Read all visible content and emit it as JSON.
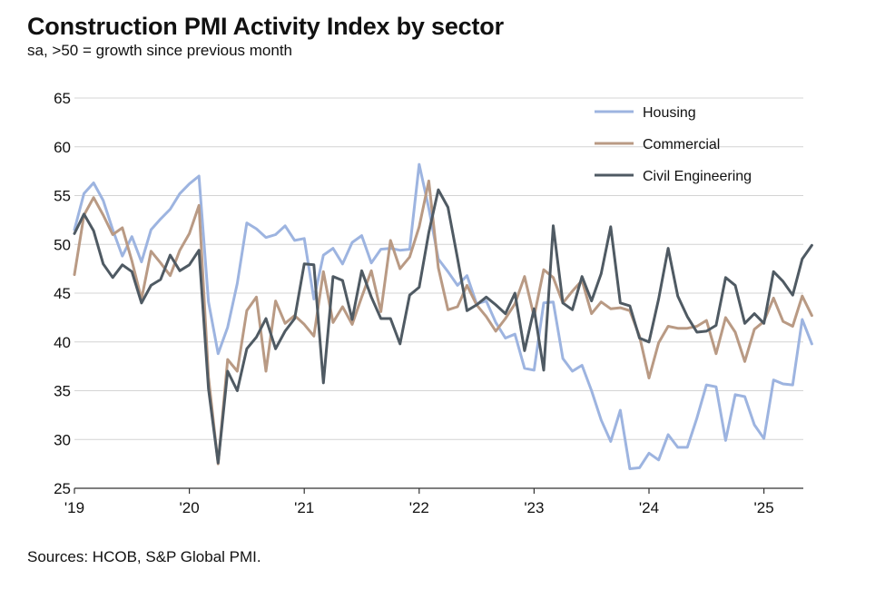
{
  "header": {
    "title": "Construction PMI Activity Index by sector",
    "subtitle": "sa, >50 = growth since previous month"
  },
  "footer": {
    "source": "Sources: HCOB, S&P Global PMI."
  },
  "chart_data": {
    "type": "line",
    "title": "Construction PMI Activity Index by sector",
    "subtitle": "sa, >50 = growth since previous month",
    "xlabel": "",
    "ylabel": "",
    "ylim": [
      25,
      65
    ],
    "yticks": [
      25,
      30,
      35,
      40,
      45,
      50,
      55,
      60,
      65
    ],
    "xticks": [
      {
        "label": "'19",
        "month_index": 0
      },
      {
        "label": "'20",
        "month_index": 12
      },
      {
        "label": "'21",
        "month_index": 24
      },
      {
        "label": "'22",
        "month_index": 36
      },
      {
        "label": "'23",
        "month_index": 48
      },
      {
        "label": "'24",
        "month_index": 60
      },
      {
        "label": "'25",
        "month_index": 72
      }
    ],
    "x_start": "2019-01",
    "x_frequency": "monthly",
    "grid": "horizontal",
    "legend_position": "top-right",
    "series": [
      {
        "name": "Housing",
        "color": "#9db4e0",
        "values": [
          51.5,
          55.2,
          56.3,
          54.5,
          51.5,
          48.8,
          50.8,
          48.2,
          51.5,
          52.6,
          53.6,
          55.2,
          56.2,
          57.0,
          44.1,
          38.8,
          41.5,
          46.0,
          52.2,
          51.6,
          50.7,
          51.0,
          51.9,
          50.4,
          50.6,
          44.4,
          48.9,
          49.6,
          48.0,
          50.2,
          50.9,
          48.1,
          49.5,
          49.6,
          49.4,
          49.5,
          58.2,
          53.7,
          48.5,
          47.2,
          45.8,
          46.8,
          43.9,
          44.2,
          42.0,
          40.4,
          40.8,
          37.3,
          37.1,
          44.0,
          44.1,
          38.3,
          37.0,
          37.6,
          35.0,
          32.0,
          29.8,
          33.0,
          27.0,
          27.1,
          28.6,
          27.9,
          30.5,
          29.2,
          29.2,
          32.2,
          35.6,
          35.4,
          29.9,
          34.6,
          34.4,
          31.5,
          30.1,
          36.1,
          35.7,
          35.6,
          42.3,
          39.8
        ]
      },
      {
        "name": "Commercial",
        "color": "#b99a84",
        "values": [
          46.9,
          53.0,
          54.8,
          53.0,
          51.0,
          51.7,
          48.3,
          44.4,
          49.3,
          48.1,
          46.8,
          49.4,
          51.1,
          54.0,
          36.4,
          27.5,
          38.2,
          37.0,
          43.2,
          44.6,
          37.0,
          44.2,
          41.9,
          42.7,
          41.8,
          40.6,
          47.2,
          42.0,
          43.6,
          41.8,
          44.6,
          47.3,
          43.1,
          50.4,
          47.5,
          48.7,
          51.8,
          56.5,
          47.6,
          43.3,
          43.6,
          45.8,
          43.8,
          42.6,
          41.1,
          42.4,
          43.9,
          46.7,
          42.6,
          47.4,
          46.6,
          44.0,
          45.2,
          46.3,
          42.9,
          44.1,
          43.4,
          43.5,
          43.2,
          40.6,
          36.3,
          39.9,
          41.6,
          41.4,
          41.4,
          41.6,
          42.2,
          38.8,
          42.5,
          41.0,
          38.0,
          41.3,
          42.1,
          44.5,
          42.1,
          41.6,
          44.7,
          42.7
        ]
      },
      {
        "name": "Civil Engineering",
        "color": "#4f5a63",
        "values": [
          51.1,
          53.1,
          51.4,
          48.0,
          46.6,
          47.9,
          47.2,
          44.0,
          45.8,
          46.4,
          48.9,
          47.3,
          47.9,
          49.4,
          35.2,
          27.6,
          37.0,
          35.0,
          39.3,
          40.5,
          42.4,
          39.3,
          41.1,
          42.4,
          48.0,
          47.9,
          35.8,
          46.7,
          46.3,
          42.3,
          47.3,
          44.6,
          42.4,
          42.4,
          39.8,
          44.8,
          45.6,
          51.2,
          55.6,
          53.8,
          48.6,
          43.2,
          43.8,
          44.6,
          43.8,
          42.9,
          45.0,
          39.1,
          43.4,
          37.1,
          51.9,
          44.0,
          43.3,
          46.7,
          44.2,
          47.0,
          51.8,
          44.0,
          43.7,
          40.4,
          40.0,
          44.4,
          49.6,
          44.7,
          42.6,
          41.0,
          41.1,
          41.7,
          46.6,
          45.8,
          41.9,
          42.9,
          41.9,
          47.2,
          46.2,
          44.8,
          48.5,
          49.9
        ]
      }
    ]
  }
}
